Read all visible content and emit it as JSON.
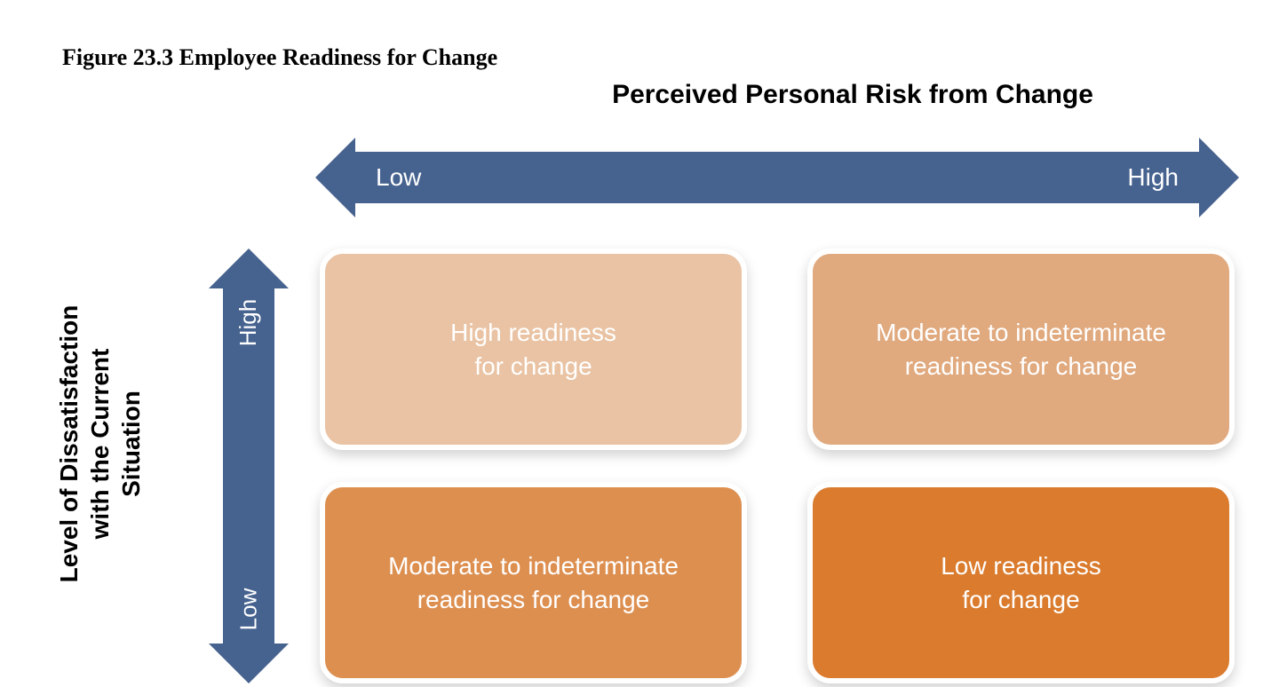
{
  "figure": {
    "title": "Figure 23.3  Employee Readiness for Change",
    "title_font": "Georgia, serif",
    "title_fontsize": 26,
    "title_color": "#000000",
    "background_color": "#ffffff",
    "x_axis": {
      "label": "Perceived Personal Risk from Change",
      "low_label": "Low",
      "high_label": "High",
      "arrow_color": "#46628f",
      "text_color": "#ffffff",
      "fontsize": 30
    },
    "y_axis": {
      "label_line1": "Level of Dissatisfaction",
      "label_line2": "with the Current",
      "label_line3": "Situation",
      "low_label": "Low",
      "high_label": "High",
      "arrow_color": "#46628f",
      "text_color": "#ffffff",
      "fontsize": 28
    },
    "matrix": {
      "type": "2x2-matrix",
      "cell_border_color": "#ffffff",
      "cell_border_width": 6,
      "cell_border_radius": 26,
      "cell_text_color": "#ffffff",
      "cell_fontsize": 28,
      "shadow_color": "rgba(0,0,0,0.18)",
      "cells": [
        {
          "pos": "top-left",
          "x": "Low",
          "y": "High",
          "label": "High readiness\nfor change",
          "fill": "#e9c3a3"
        },
        {
          "pos": "top-right",
          "x": "High",
          "y": "High",
          "label": "Moderate to indeterminate\nreadiness for change",
          "fill": "#e0a97e"
        },
        {
          "pos": "bottom-left",
          "x": "Low",
          "y": "Low",
          "label": "Moderate to indeterminate\nreadiness for change",
          "fill": "#dd8f50"
        },
        {
          "pos": "bottom-right",
          "x": "High",
          "y": "Low",
          "label": "Low readiness\nfor change",
          "fill": "#da7b2e"
        }
      ]
    }
  }
}
